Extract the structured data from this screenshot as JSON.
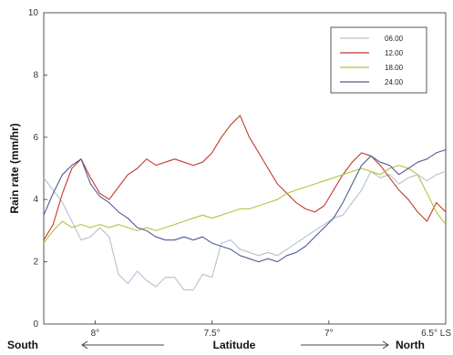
{
  "chart_data": {
    "type": "line",
    "xlabel": "Latitude",
    "ylabel": "Rain rate (mm/hr)",
    "direction_left": "South",
    "direction_right": "North",
    "xlim": [
      8.22,
      6.5
    ],
    "x_reversed": true,
    "ylim": [
      0,
      10
    ],
    "x_ticks": [
      {
        "value": 8.0,
        "label": "8°"
      },
      {
        "value": 7.5,
        "label": "7.5°"
      },
      {
        "value": 7.0,
        "label": "7°"
      },
      {
        "value": 6.5,
        "label": "6.5° LS"
      }
    ],
    "y_ticks": [
      0,
      2,
      4,
      6,
      8,
      10
    ],
    "grid": false,
    "legend_position": "top-right",
    "series": [
      {
        "name": "06.00",
        "color": "#b3c1d0",
        "x": [
          8.22,
          8.18,
          8.14,
          8.1,
          8.06,
          8.02,
          7.98,
          7.94,
          7.9,
          7.86,
          7.82,
          7.78,
          7.74,
          7.7,
          7.66,
          7.62,
          7.58,
          7.54,
          7.5,
          7.46,
          7.42,
          7.38,
          7.34,
          7.3,
          7.26,
          7.22,
          7.18,
          7.14,
          7.1,
          7.06,
          7.02,
          6.98,
          6.94,
          6.9,
          6.86,
          6.82,
          6.78,
          6.74,
          6.7,
          6.66,
          6.62,
          6.58,
          6.54,
          6.5
        ],
        "values": [
          4.7,
          4.3,
          3.9,
          3.3,
          2.7,
          2.8,
          3.1,
          2.8,
          1.6,
          1.3,
          1.7,
          1.4,
          1.2,
          1.5,
          1.5,
          1.1,
          1.1,
          1.6,
          1.5,
          2.6,
          2.7,
          2.4,
          2.3,
          2.2,
          2.3,
          2.2,
          2.4,
          2.6,
          2.8,
          3.0,
          3.2,
          3.4,
          3.5,
          3.9,
          4.3,
          4.9,
          4.7,
          4.8,
          4.5,
          4.7,
          4.8,
          4.6,
          4.8,
          4.9
        ]
      },
      {
        "name": "12.00",
        "color": "#c0392b",
        "x": [
          8.22,
          8.18,
          8.14,
          8.1,
          8.06,
          8.02,
          7.98,
          7.94,
          7.9,
          7.86,
          7.82,
          7.78,
          7.74,
          7.7,
          7.66,
          7.62,
          7.58,
          7.54,
          7.5,
          7.46,
          7.42,
          7.38,
          7.34,
          7.3,
          7.26,
          7.22,
          7.18,
          7.14,
          7.1,
          7.06,
          7.02,
          6.98,
          6.94,
          6.9,
          6.86,
          6.82,
          6.78,
          6.74,
          6.7,
          6.66,
          6.62,
          6.58,
          6.54,
          6.5
        ],
        "values": [
          2.7,
          3.2,
          4.2,
          5.0,
          5.3,
          4.7,
          4.2,
          4.0,
          4.4,
          4.8,
          5.0,
          5.3,
          5.1,
          5.2,
          5.3,
          5.2,
          5.1,
          5.2,
          5.5,
          6.0,
          6.4,
          6.7,
          6.0,
          5.5,
          5.0,
          4.5,
          4.2,
          3.9,
          3.7,
          3.6,
          3.8,
          4.3,
          4.8,
          5.2,
          5.5,
          5.4,
          5.1,
          4.7,
          4.3,
          4.0,
          3.6,
          3.3,
          3.9,
          3.6
        ]
      },
      {
        "name": "18.00",
        "color": "#b2c43a",
        "x": [
          8.22,
          8.18,
          8.14,
          8.1,
          8.06,
          8.02,
          7.98,
          7.94,
          7.9,
          7.86,
          7.82,
          7.78,
          7.74,
          7.7,
          7.66,
          7.62,
          7.58,
          7.54,
          7.5,
          7.46,
          7.42,
          7.38,
          7.34,
          7.3,
          7.26,
          7.22,
          7.18,
          7.14,
          7.1,
          7.06,
          7.02,
          6.98,
          6.94,
          6.9,
          6.86,
          6.82,
          6.78,
          6.74,
          6.7,
          6.66,
          6.62,
          6.58,
          6.54,
          6.5
        ],
        "values": [
          2.6,
          3.0,
          3.3,
          3.1,
          3.2,
          3.1,
          3.2,
          3.1,
          3.2,
          3.1,
          3.0,
          3.1,
          3.0,
          3.1,
          3.2,
          3.3,
          3.4,
          3.5,
          3.4,
          3.5,
          3.6,
          3.7,
          3.7,
          3.8,
          3.9,
          4.0,
          4.2,
          4.3,
          4.4,
          4.5,
          4.6,
          4.7,
          4.8,
          4.9,
          5.0,
          4.9,
          4.8,
          5.0,
          5.1,
          5.0,
          4.8,
          4.2,
          3.6,
          3.2
        ]
      },
      {
        "name": "24.00",
        "color": "#4f5b93",
        "x": [
          8.22,
          8.18,
          8.14,
          8.1,
          8.06,
          8.02,
          7.98,
          7.94,
          7.9,
          7.86,
          7.82,
          7.78,
          7.74,
          7.7,
          7.66,
          7.62,
          7.58,
          7.54,
          7.5,
          7.46,
          7.42,
          7.38,
          7.34,
          7.3,
          7.26,
          7.22,
          7.18,
          7.14,
          7.1,
          7.06,
          7.02,
          6.98,
          6.94,
          6.9,
          6.86,
          6.82,
          6.78,
          6.74,
          6.7,
          6.66,
          6.62,
          6.58,
          6.54,
          6.5
        ],
        "values": [
          3.5,
          4.2,
          4.8,
          5.1,
          5.3,
          4.5,
          4.1,
          3.9,
          3.6,
          3.4,
          3.1,
          3.0,
          2.8,
          2.7,
          2.7,
          2.8,
          2.7,
          2.8,
          2.6,
          2.5,
          2.4,
          2.2,
          2.1,
          2.0,
          2.1,
          2.0,
          2.2,
          2.3,
          2.5,
          2.8,
          3.1,
          3.4,
          3.9,
          4.5,
          5.1,
          5.4,
          5.2,
          5.1,
          4.8,
          5.0,
          5.2,
          5.3,
          5.5,
          5.6
        ]
      }
    ]
  }
}
